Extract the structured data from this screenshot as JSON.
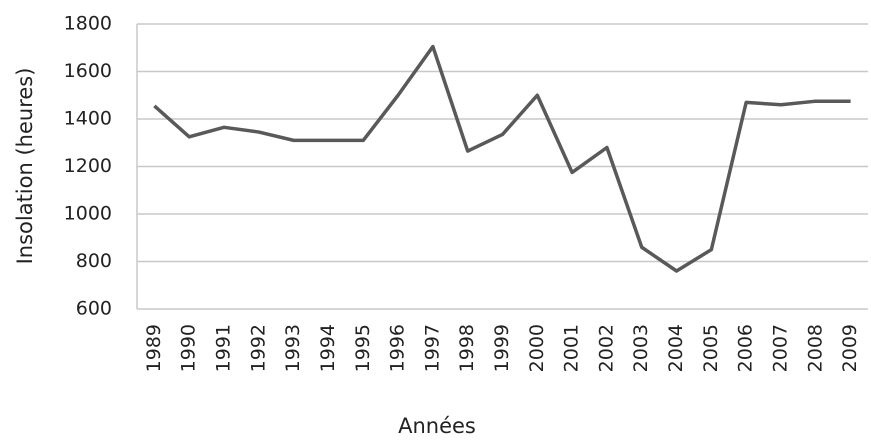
{
  "chart_data": {
    "type": "line",
    "x_label": "Années",
    "y_label": "Insolation (heures)",
    "categories": [
      "1989",
      "1990",
      "1991",
      "1992",
      "1993",
      "1994",
      "1995",
      "1996",
      "1997",
      "1998",
      "1999",
      "2000",
      "2001",
      "2002",
      "2003",
      "2004",
      "2005",
      "2006",
      "2007",
      "2008",
      "2009"
    ],
    "values": [
      1455,
      1325,
      1365,
      1345,
      1310,
      1310,
      1310,
      1500,
      1705,
      1265,
      1335,
      1500,
      1175,
      1280,
      860,
      760,
      850,
      1470,
      1460,
      1475,
      1475
    ],
    "color": "#595959",
    "ylim": [
      600,
      1800
    ],
    "yticks": [
      600,
      800,
      1000,
      1200,
      1400,
      1600,
      1800
    ],
    "grid": true
  }
}
